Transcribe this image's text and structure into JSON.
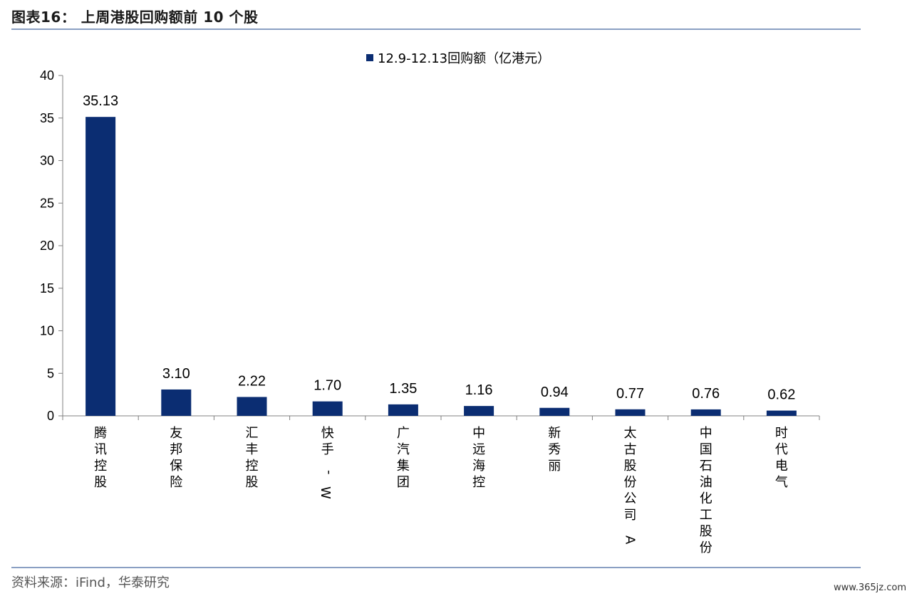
{
  "header": {
    "title": "图表16：  上周港股回购额前 10 个股"
  },
  "footer": {
    "source": "资料来源：iFind，华泰研究",
    "watermark": "www.365jz.com"
  },
  "chart_data": {
    "type": "bar",
    "title": "",
    "xlabel": "",
    "ylabel": "",
    "ylim": [
      0,
      40
    ],
    "yticks": [
      0,
      5,
      10,
      15,
      20,
      25,
      30,
      35,
      40
    ],
    "categories": [
      "腾讯控股",
      "友邦保险",
      "汇丰控股",
      "快手-W",
      "广汽集团",
      "中远海控",
      "新秀丽",
      "太古股份公司A",
      "中国石油化工股份",
      "时代电气"
    ],
    "series": [
      {
        "name": "12.9-12.13回购额（亿港元）",
        "values": [
          35.13,
          3.1,
          2.22,
          1.7,
          1.35,
          1.16,
          0.94,
          0.77,
          0.76,
          0.62
        ],
        "labels": [
          "35.13",
          "3.10",
          "2.22",
          "1.70",
          "1.35",
          "1.16",
          "0.94",
          "0.77",
          "0.76",
          "0.62"
        ],
        "color": "#0b2d72"
      }
    ],
    "legend": "top-center",
    "grid": false
  }
}
